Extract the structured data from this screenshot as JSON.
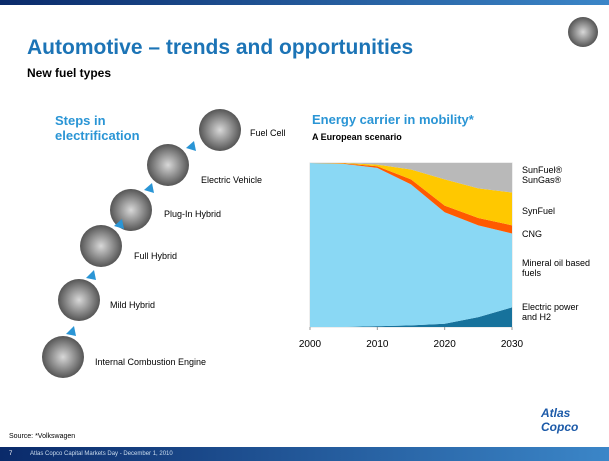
{
  "slide": {
    "title": "Automotive – trends and opportunities",
    "subtitle": "New fuel types",
    "left_heading": "Steps in electrification",
    "steps": [
      "Internal Combustion Engine",
      "Mild Hybrid",
      "Full Hybrid",
      "Plug-In Hybrid",
      "Electric Vehicle",
      "Fuel Cell"
    ],
    "source": "Source: *Volkswagen",
    "logo": "Atlas Copco",
    "page_number": "7",
    "footer": "Atlas Copco Capital Markets Day - December 1, 2010"
  },
  "chart_data": {
    "type": "area",
    "stacked": true,
    "title": "Energy carrier in mobility*",
    "subtitle": "A European scenario",
    "x": [
      2000,
      2005,
      2010,
      2015,
      2020,
      2025,
      2030
    ],
    "xlim": [
      2000,
      2030
    ],
    "xticks": [
      2000,
      2010,
      2020,
      2030
    ],
    "ylim": [
      0,
      100
    ],
    "series": [
      {
        "name": "Electric power and H2",
        "color": "#17729c",
        "values": [
          0,
          0,
          0.5,
          1,
          2,
          6,
          12
        ]
      },
      {
        "name": "Mineral oil based fuels",
        "color": "#8ad8f4",
        "values": [
          100,
          99.5,
          96.5,
          86,
          68,
          56,
          45
        ]
      },
      {
        "name": "CNG",
        "color": "#ff5a00",
        "values": [
          0,
          0.3,
          1,
          3,
          4,
          4.5,
          5
        ]
      },
      {
        "name": "SynFuel",
        "color": "#ffc800",
        "values": [
          0,
          0.2,
          1,
          6,
          16,
          18,
          20
        ]
      },
      {
        "name": "SunFuel® SunGas®",
        "color": "#b9b9b9",
        "values": [
          0,
          0,
          1,
          4,
          10,
          15.5,
          18
        ]
      }
    ]
  }
}
